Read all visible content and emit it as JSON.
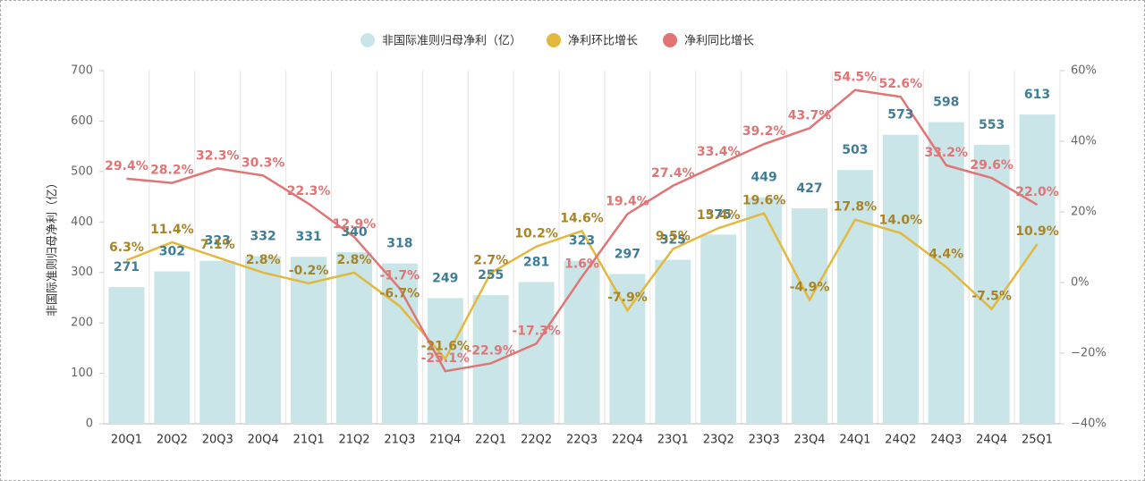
{
  "chart_data": {
    "type": "combo",
    "y_label": "非国际准则归母净利（亿）",
    "categories": [
      "20Q1",
      "20Q2",
      "20Q3",
      "20Q4",
      "21Q1",
      "21Q2",
      "21Q3",
      "21Q4",
      "22Q1",
      "22Q2",
      "22Q3",
      "22Q4",
      "23Q1",
      "23Q2",
      "23Q3",
      "23Q4",
      "24Q1",
      "24Q2",
      "24Q3",
      "24Q4",
      "25Q1"
    ],
    "ylim": [
      0,
      700
    ],
    "yticks": [
      0,
      100,
      200,
      300,
      400,
      500,
      600,
      700
    ],
    "y2lim": [
      -40,
      60
    ],
    "y2ticks": [
      {
        "value": -40,
        "label": "−40%"
      },
      {
        "value": -20,
        "label": "−20%"
      },
      {
        "value": 0,
        "label": "0%"
      },
      {
        "value": 20,
        "label": "20%"
      },
      {
        "value": 40,
        "label": "40%"
      },
      {
        "value": 60,
        "label": "60%"
      }
    ],
    "grid": true,
    "series": [
      {
        "name": "非国际准则归母净利（亿）",
        "type": "bar",
        "color": "#c9e5e8",
        "label_color": "#3f7d96",
        "values": [
          271,
          302,
          323,
          332,
          331,
          340,
          318,
          249,
          255,
          281,
          323,
          297,
          325,
          375,
          449,
          427,
          503,
          573,
          598,
          553,
          613
        ]
      },
      {
        "name": "净利环比增长",
        "type": "line",
        "axis": "y2",
        "color": "#e2b83e",
        "label_color": "#a88424",
        "values": [
          6.3,
          11.4,
          7.1,
          2.8,
          -0.2,
          2.8,
          -6.7,
          -21.6,
          2.7,
          10.2,
          14.6,
          -7.9,
          9.5,
          15.4,
          19.6,
          -4.9,
          17.8,
          14.0,
          4.4,
          -7.5,
          10.9
        ],
        "value_labels": [
          "6.3%",
          "11.4%",
          "7.1%",
          "2.8%",
          "-0.2%",
          "2.8%",
          "-6.7%",
          "-21.6%",
          "2.7%",
          "10.2%",
          "14.6%",
          "-7.9%",
          "9.5%",
          "15.4%",
          "19.6%",
          "-4.9%",
          "17.8%",
          "14.0%",
          "4.4%",
          "-7.5%",
          "10.9%"
        ]
      },
      {
        "name": "净利同比增长",
        "type": "line",
        "axis": "y2",
        "color": "#e07575",
        "label_color": "#e07575",
        "values": [
          29.4,
          28.2,
          32.3,
          30.3,
          22.3,
          12.9,
          -1.7,
          -25.1,
          -22.9,
          -17.3,
          1.6,
          19.4,
          27.4,
          33.4,
          39.2,
          43.7,
          54.5,
          52.6,
          33.2,
          29.6,
          22.0
        ],
        "value_labels": [
          "29.4%",
          "28.2%",
          "32.3%",
          "30.3%",
          "22.3%",
          "12.9%",
          "-1.7%",
          "-25.1%",
          "-22.9%",
          "-17.3%",
          "1.6%",
          "19.4%",
          "27.4%",
          "33.4%",
          "39.2%",
          "43.7%",
          "54.5%",
          "52.6%",
          "33.2%",
          "29.6%",
          "22.0%"
        ]
      }
    ]
  }
}
